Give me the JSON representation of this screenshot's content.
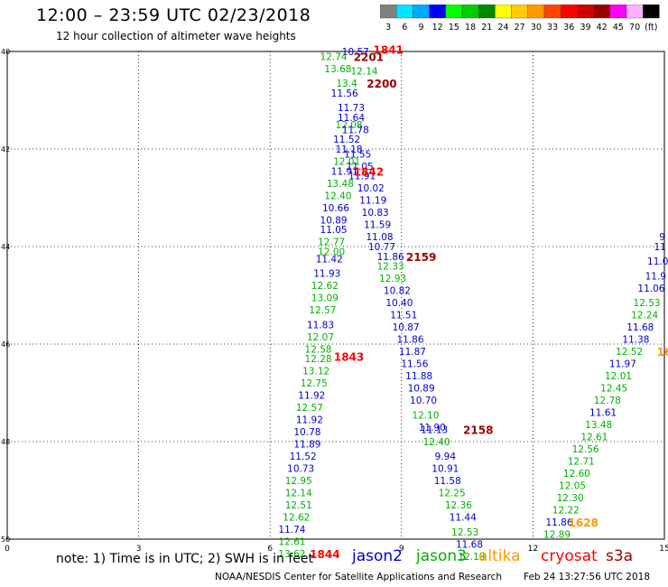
{
  "header": {
    "title": "12:00 – 23:59 UTC 02/23/2018",
    "subtitle": "12 hour collection of altimeter wave heights"
  },
  "scale": {
    "labels": [
      "3",
      "6",
      "9",
      "12",
      "15",
      "18",
      "21",
      "24",
      "27",
      "30",
      "33",
      "36",
      "39",
      "42",
      "45",
      "70",
      "(ft)"
    ],
    "colors": [
      "#808080",
      "#00e5ff",
      "#00a8ff",
      "#0000ff",
      "#00ff00",
      "#00cc00",
      "#008800",
      "#ffff00",
      "#ffcc00",
      "#ff9900",
      "#ff4400",
      "#ff0000",
      "#cc0000",
      "#990000",
      "#ff00ff",
      "#ffb0ff",
      "#000000"
    ]
  },
  "axes": {
    "x_ticks": [
      0,
      3,
      6,
      9,
      12,
      15
    ],
    "y_ticks": [
      40,
      42,
      44,
      46,
      48,
      50
    ],
    "x_tick_labels": [
      "0",
      "3",
      "6",
      "9",
      "12",
      "15"
    ],
    "y_tick_labels": [
      "40",
      "42",
      "44",
      "46",
      "48",
      "50"
    ]
  },
  "note": "note:  1) Time is in UTC;  2) SWH is in feet",
  "satellites": [
    {
      "name": "jason2",
      "color": "#0000cc"
    },
    {
      "name": "jason3",
      "color": "#00b000"
    },
    {
      "name": "altika",
      "color": "#ff9900"
    },
    {
      "name": "cryosat",
      "color": "#ff0000"
    },
    {
      "name": "s3a",
      "color": "#990000"
    }
  ],
  "footer": {
    "credit": "NOAA/NESDIS Center for Satellite Applications and Research",
    "timestamp": "Feb 24 13:27:56 UTC 2018"
  },
  "chart_data": {
    "type": "scatter",
    "xlim": [
      0,
      15
    ],
    "ylim": [
      50,
      40
    ],
    "grid": true,
    "points": [
      {
        "x": 7.95,
        "y": 40.0,
        "v": "10.57",
        "sat": "jason2"
      },
      {
        "x": 7.45,
        "y": 40.1,
        "v": "12.74",
        "sat": "jason3"
      },
      {
        "x": 7.55,
        "y": 40.35,
        "v": "13.68",
        "sat": "jason3"
      },
      {
        "x": 8.15,
        "y": 40.4,
        "v": "12.14",
        "sat": "jason3"
      },
      {
        "x": 7.75,
        "y": 40.65,
        "v": "13.4",
        "sat": "jason3"
      },
      {
        "x": 7.7,
        "y": 40.85,
        "v": "11.56",
        "sat": "jason2"
      },
      {
        "x": 7.85,
        "y": 41.15,
        "v": "11.73",
        "sat": "jason2"
      },
      {
        "x": 7.85,
        "y": 41.35,
        "v": "11.64",
        "sat": "jason2"
      },
      {
        "x": 7.8,
        "y": 41.5,
        "v": "12.08",
        "sat": "jason3"
      },
      {
        "x": 7.95,
        "y": 41.6,
        "v": "11.78",
        "sat": "jason2"
      },
      {
        "x": 7.75,
        "y": 41.8,
        "v": "11.52",
        "sat": "jason2"
      },
      {
        "x": 7.8,
        "y": 42.0,
        "v": "11.18",
        "sat": "jason2"
      },
      {
        "x": 8.0,
        "y": 42.1,
        "v": "11.55",
        "sat": "jason2"
      },
      {
        "x": 7.75,
        "y": 42.25,
        "v": "12.01",
        "sat": "jason3"
      },
      {
        "x": 8.05,
        "y": 42.35,
        "v": "11.05",
        "sat": "jason2"
      },
      {
        "x": 7.7,
        "y": 42.45,
        "v": "11.91",
        "sat": "jason2"
      },
      {
        "x": 8.1,
        "y": 42.55,
        "v": "11.91",
        "sat": "jason2"
      },
      {
        "x": 7.6,
        "y": 42.7,
        "v": "13.48",
        "sat": "jason3"
      },
      {
        "x": 8.3,
        "y": 42.8,
        "v": "10.02",
        "sat": "jason2"
      },
      {
        "x": 7.55,
        "y": 42.95,
        "v": "12.40",
        "sat": "jason3"
      },
      {
        "x": 8.35,
        "y": 43.05,
        "v": "11.19",
        "sat": "jason2"
      },
      {
        "x": 7.5,
        "y": 43.2,
        "v": "10.66",
        "sat": "jason2"
      },
      {
        "x": 8.4,
        "y": 43.3,
        "v": "10.83",
        "sat": "jason2"
      },
      {
        "x": 7.45,
        "y": 43.45,
        "v": "10.89",
        "sat": "jason2"
      },
      {
        "x": 8.45,
        "y": 43.55,
        "v": "11.59",
        "sat": "jason2"
      },
      {
        "x": 7.45,
        "y": 43.65,
        "v": "11.05",
        "sat": "jason2"
      },
      {
        "x": 8.5,
        "y": 43.8,
        "v": "11.08",
        "sat": "jason2"
      },
      {
        "x": 7.4,
        "y": 43.9,
        "v": "12.77",
        "sat": "jason3"
      },
      {
        "x": 8.55,
        "y": 44.0,
        "v": "10.77",
        "sat": "jason2"
      },
      {
        "x": 7.4,
        "y": 44.1,
        "v": "12.00",
        "sat": "jason3"
      },
      {
        "x": 8.75,
        "y": 44.2,
        "v": "11.86",
        "sat": "jason2"
      },
      {
        "x": 7.35,
        "y": 44.25,
        "v": "11.42",
        "sat": "jason2"
      },
      {
        "x": 8.75,
        "y": 44.4,
        "v": "12.33",
        "sat": "jason3"
      },
      {
        "x": 7.3,
        "y": 44.55,
        "v": "11.93",
        "sat": "jason2"
      },
      {
        "x": 8.8,
        "y": 44.65,
        "v": "12.93",
        "sat": "jason3"
      },
      {
        "x": 7.25,
        "y": 44.8,
        "v": "12.62",
        "sat": "jason3"
      },
      {
        "x": 8.9,
        "y": 44.9,
        "v": "10.82",
        "sat": "jason2"
      },
      {
        "x": 7.25,
        "y": 45.05,
        "v": "13.09",
        "sat": "jason3"
      },
      {
        "x": 8.95,
        "y": 45.15,
        "v": "10.40",
        "sat": "jason2"
      },
      {
        "x": 7.2,
        "y": 45.3,
        "v": "12.57",
        "sat": "jason3"
      },
      {
        "x": 9.05,
        "y": 45.4,
        "v": "11.51",
        "sat": "jason2"
      },
      {
        "x": 7.15,
        "y": 45.6,
        "v": "11.83",
        "sat": "jason2"
      },
      {
        "x": 9.1,
        "y": 45.65,
        "v": "10.87",
        "sat": "jason2"
      },
      {
        "x": 7.15,
        "y": 45.85,
        "v": "12.07",
        "sat": "jason3"
      },
      {
        "x": 9.2,
        "y": 45.9,
        "v": "11.86",
        "sat": "jason2"
      },
      {
        "x": 7.1,
        "y": 46.1,
        "v": "12.58",
        "sat": "jason3"
      },
      {
        "x": 9.25,
        "y": 46.15,
        "v": "11.87",
        "sat": "jason2"
      },
      {
        "x": 7.1,
        "y": 46.3,
        "v": "12.28",
        "sat": "jason3"
      },
      {
        "x": 9.3,
        "y": 46.4,
        "v": "11.56",
        "sat": "jason2"
      },
      {
        "x": 7.05,
        "y": 46.55,
        "v": "13.12",
        "sat": "jason3"
      },
      {
        "x": 9.4,
        "y": 46.65,
        "v": "11.88",
        "sat": "jason2"
      },
      {
        "x": 7.0,
        "y": 46.8,
        "v": "12.75",
        "sat": "jason3"
      },
      {
        "x": 9.45,
        "y": 46.9,
        "v": "10.89",
        "sat": "jason2"
      },
      {
        "x": 6.95,
        "y": 47.05,
        "v": "11.92",
        "sat": "jason2"
      },
      {
        "x": 9.5,
        "y": 47.15,
        "v": "10.70",
        "sat": "jason2"
      },
      {
        "x": 6.9,
        "y": 47.3,
        "v": "12.57",
        "sat": "jason3"
      },
      {
        "x": 9.55,
        "y": 47.45,
        "v": "12.10",
        "sat": "jason3"
      },
      {
        "x": 6.9,
        "y": 47.55,
        "v": "11.92",
        "sat": "jason2"
      },
      {
        "x": 9.7,
        "y": 47.7,
        "v": "11.90",
        "sat": "jason2"
      },
      {
        "x": 6.85,
        "y": 47.8,
        "v": "10.78",
        "sat": "jason2"
      },
      {
        "x": 9.75,
        "y": 47.75,
        "v": "11.13",
        "sat": "jason2"
      },
      {
        "x": 6.85,
        "y": 48.05,
        "v": "11.89",
        "sat": "jason2"
      },
      {
        "x": 9.8,
        "y": 48.0,
        "v": "12.40",
        "sat": "jason3"
      },
      {
        "x": 6.75,
        "y": 48.3,
        "v": "11.52",
        "sat": "jason2"
      },
      {
        "x": 10.0,
        "y": 48.3,
        "v": "9.94",
        "sat": "jason2"
      },
      {
        "x": 6.7,
        "y": 48.55,
        "v": "10.73",
        "sat": "jason2"
      },
      {
        "x": 10.0,
        "y": 48.55,
        "v": "10.91",
        "sat": "jason2"
      },
      {
        "x": 6.65,
        "y": 48.8,
        "v": "12.95",
        "sat": "jason3"
      },
      {
        "x": 10.05,
        "y": 48.8,
        "v": "11.58",
        "sat": "jason2"
      },
      {
        "x": 6.65,
        "y": 49.05,
        "v": "12.14",
        "sat": "jason3"
      },
      {
        "x": 10.15,
        "y": 49.05,
        "v": "12.25",
        "sat": "jason3"
      },
      {
        "x": 6.65,
        "y": 49.3,
        "v": "12.51",
        "sat": "jason3"
      },
      {
        "x": 10.3,
        "y": 49.3,
        "v": "12.36",
        "sat": "jason3"
      },
      {
        "x": 6.6,
        "y": 49.55,
        "v": "12.62",
        "sat": "jason3"
      },
      {
        "x": 10.4,
        "y": 49.55,
        "v": "11.44",
        "sat": "jason2"
      },
      {
        "x": 6.5,
        "y": 49.8,
        "v": "11.74",
        "sat": "jason2"
      },
      {
        "x": 10.45,
        "y": 49.85,
        "v": "12.53",
        "sat": "jason3"
      },
      {
        "x": 6.5,
        "y": 50.05,
        "v": "12.61",
        "sat": "jason3"
      },
      {
        "x": 10.55,
        "y": 50.1,
        "v": "11.68",
        "sat": "jason2"
      },
      {
        "x": 6.5,
        "y": 50.3,
        "v": "13.62",
        "sat": "jason3"
      },
      {
        "x": 10.6,
        "y": 50.35,
        "v": "12.19",
        "sat": "jason3"
      },
      {
        "x": 14.95,
        "y": 43.8,
        "v": "9",
        "sat": "jason2"
      },
      {
        "x": 14.9,
        "y": 44.0,
        "v": "11",
        "sat": "jason2"
      },
      {
        "x": 14.85,
        "y": 44.3,
        "v": "11.0",
        "sat": "jason2"
      },
      {
        "x": 14.8,
        "y": 44.6,
        "v": "11.9",
        "sat": "jason2"
      },
      {
        "x": 14.7,
        "y": 44.85,
        "v": "11.06",
        "sat": "jason2"
      },
      {
        "x": 14.6,
        "y": 45.15,
        "v": "12.53",
        "sat": "jason3"
      },
      {
        "x": 14.55,
        "y": 45.4,
        "v": "12.24",
        "sat": "jason3"
      },
      {
        "x": 14.45,
        "y": 45.65,
        "v": "11.68",
        "sat": "jason2"
      },
      {
        "x": 14.35,
        "y": 45.9,
        "v": "11.38",
        "sat": "jason2"
      },
      {
        "x": 14.2,
        "y": 46.15,
        "v": "12.52",
        "sat": "jason3"
      },
      {
        "x": 14.05,
        "y": 46.4,
        "v": "11.97",
        "sat": "jason2"
      },
      {
        "x": 13.95,
        "y": 46.65,
        "v": "12.01",
        "sat": "jason3"
      },
      {
        "x": 13.85,
        "y": 46.9,
        "v": "12.45",
        "sat": "jason3"
      },
      {
        "x": 13.7,
        "y": 47.15,
        "v": "12.78",
        "sat": "jason3"
      },
      {
        "x": 13.6,
        "y": 47.4,
        "v": "11.61",
        "sat": "jason2"
      },
      {
        "x": 13.5,
        "y": 47.65,
        "v": "13.48",
        "sat": "jason3"
      },
      {
        "x": 13.4,
        "y": 47.9,
        "v": "12.61",
        "sat": "jason3"
      },
      {
        "x": 13.2,
        "y": 48.15,
        "v": "12.56",
        "sat": "jason3"
      },
      {
        "x": 13.1,
        "y": 48.4,
        "v": "12.71",
        "sat": "jason3"
      },
      {
        "x": 13.0,
        "y": 48.65,
        "v": "12.60",
        "sat": "jason3"
      },
      {
        "x": 12.9,
        "y": 48.9,
        "v": "12.05",
        "sat": "jason3"
      },
      {
        "x": 12.85,
        "y": 49.15,
        "v": "12.30",
        "sat": "jason3"
      },
      {
        "x": 12.75,
        "y": 49.4,
        "v": "12.22",
        "sat": "jason3"
      },
      {
        "x": 12.6,
        "y": 49.65,
        "v": "11.86",
        "sat": "jason2"
      },
      {
        "x": 12.55,
        "y": 49.9,
        "v": "12.89",
        "sat": "jason3"
      }
    ],
    "time_labels": [
      {
        "x": 8.7,
        "y": 39.95,
        "v": "1841",
        "sat": "cryosat"
      },
      {
        "x": 8.25,
        "y": 40.1,
        "v": "2201",
        "sat": "s3a"
      },
      {
        "x": 8.55,
        "y": 40.65,
        "v": "2200",
        "sat": "s3a"
      },
      {
        "x": 8.25,
        "y": 42.45,
        "v": "1842",
        "sat": "cryosat"
      },
      {
        "x": 9.45,
        "y": 44.2,
        "v": "2159",
        "sat": "s3a"
      },
      {
        "x": 7.8,
        "y": 46.25,
        "v": "1843",
        "sat": "cryosat"
      },
      {
        "x": 10.75,
        "y": 47.75,
        "v": "2158",
        "sat": "s3a"
      },
      {
        "x": 7.25,
        "y": 50.3,
        "v": "1844",
        "sat": "cryosat"
      },
      {
        "x": 13.15,
        "y": 49.65,
        "v": "1628",
        "sat": "altika"
      },
      {
        "x": 15.0,
        "y": 46.15,
        "v": "16",
        "sat": "altika"
      }
    ]
  }
}
